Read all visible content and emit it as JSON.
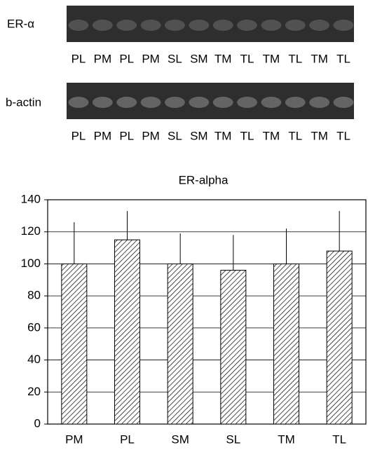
{
  "gels": [
    {
      "label": "ER-α",
      "lanes": [
        "PL",
        "PM",
        "PL",
        "PM",
        "SL",
        "SM",
        "TM",
        "TL",
        "TM",
        "TL",
        "TM",
        "TL"
      ]
    },
    {
      "label": "b-actin",
      "lanes": [
        "PL",
        "PM",
        "PL",
        "PM",
        "SL",
        "SM",
        "TM",
        "TL",
        "TM",
        "TL",
        "TM",
        "TL"
      ]
    }
  ],
  "chart_data": {
    "type": "bar",
    "title": "ER-alpha",
    "categories": [
      "PM",
      "PL",
      "SM",
      "SL",
      "TM",
      "TL"
    ],
    "values": [
      100,
      115,
      100,
      96,
      100,
      108
    ],
    "errors": [
      26,
      18,
      19,
      22,
      22,
      25
    ],
    "ylim": [
      0,
      140
    ],
    "yticks": [
      0,
      20,
      40,
      60,
      80,
      100,
      120,
      140
    ],
    "grid": true
  }
}
